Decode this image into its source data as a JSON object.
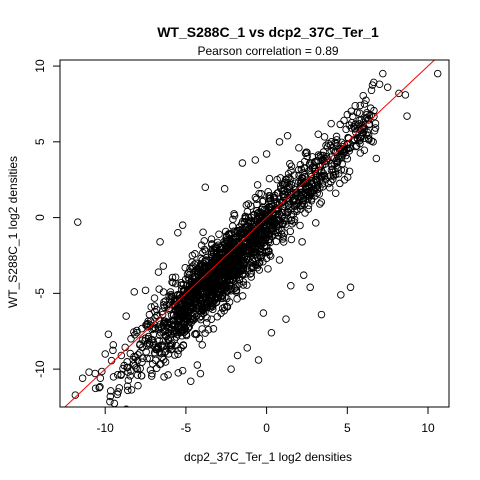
{
  "chart_data": {
    "type": "scatter",
    "title": "WT_S288C_1 vs dcp2_37C_Ter_1",
    "subtitle": "Pearson correlation =  0.89",
    "xlabel": "dcp2_37C_Ter_1 log2 densities",
    "ylabel": "WT_S288C_1 log2 densities",
    "xlim": [
      -12.8,
      11.3
    ],
    "ylim": [
      -12.5,
      10.4
    ],
    "x_ticks": [
      -10,
      -5,
      0,
      5,
      10
    ],
    "y_ticks": [
      -10,
      -5,
      0,
      5,
      10
    ],
    "x_tick_labels": [
      "-10",
      "-5",
      "0",
      "5",
      "10"
    ],
    "y_tick_labels": [
      "-10",
      "-5",
      "0",
      "5",
      "10"
    ],
    "grid": false,
    "legend": "none",
    "point_color": "#000000",
    "marker": "open-circle",
    "reference_line": {
      "type": "y=x",
      "color": "#ff0000"
    },
    "points": [
      [
        -11.7,
        -0.3
      ],
      [
        -11.4,
        -10.6
      ],
      [
        -11.0,
        -10.2
      ],
      [
        -10.3,
        -10.6
      ],
      [
        -9.2,
        -11.5
      ],
      [
        -8.6,
        -11.4
      ],
      [
        -8.7,
        -6.5
      ],
      [
        -9.8,
        -7.7
      ],
      [
        -10.0,
        -9.0
      ],
      [
        -9.5,
        -8.4
      ],
      [
        -8.2,
        -4.9
      ],
      [
        -7.5,
        -4.8
      ],
      [
        -6.7,
        -3.6
      ],
      [
        -6.6,
        -1.6
      ],
      [
        -5.5,
        -1.0
      ],
      [
        -5.2,
        -0.5
      ],
      [
        -3.8,
        2.0
      ],
      [
        -2.6,
        1.9
      ],
      [
        -1.5,
        3.6
      ],
      [
        -0.7,
        3.8
      ],
      [
        0.0,
        4.2
      ],
      [
        0.8,
        5.0
      ],
      [
        1.3,
        5.4
      ],
      [
        2.0,
        4.6
      ],
      [
        2.5,
        4.3
      ],
      [
        3.2,
        5.5
      ],
      [
        4.0,
        6.2
      ],
      [
        5.0,
        6.8
      ],
      [
        5.8,
        7.4
      ],
      [
        6.5,
        8.4
      ],
      [
        7.0,
        8.8
      ],
      [
        7.5,
        8.6
      ],
      [
        8.2,
        8.2
      ],
      [
        8.6,
        8.1
      ],
      [
        10.6,
        9.5
      ],
      [
        7.2,
        9.5
      ],
      [
        8.7,
        6.7
      ],
      [
        6.6,
        5.0
      ],
      [
        6.8,
        3.9
      ],
      [
        4.5,
        3.9
      ],
      [
        5.2,
        4.6
      ],
      [
        6.0,
        5.6
      ],
      [
        4.1,
        3.2
      ],
      [
        3.6,
        2.7
      ],
      [
        3.0,
        2.5
      ],
      [
        1.8,
        1.5
      ],
      [
        2.6,
        0.8
      ],
      [
        2.2,
        -1.6
      ],
      [
        3.3,
        0.9
      ],
      [
        2.3,
        -3.8
      ],
      [
        2.7,
        -4.6
      ],
      [
        3.4,
        -6.4
      ],
      [
        5.2,
        -4.6
      ],
      [
        4.6,
        -5.1
      ],
      [
        1.5,
        -4.5
      ],
      [
        0.8,
        -2.8
      ],
      [
        -0.4,
        -0.6
      ],
      [
        -0.9,
        -2.1
      ],
      [
        -1.6,
        -3.5
      ],
      [
        -2.5,
        -4.6
      ],
      [
        -3.1,
        -5.0
      ],
      [
        -3.8,
        -5.3
      ],
      [
        -4.3,
        -6.0
      ],
      [
        -5.0,
        -6.7
      ],
      [
        -5.5,
        -7.2
      ],
      [
        -6.1,
        -8.0
      ],
      [
        -6.8,
        -8.7
      ],
      [
        -7.4,
        -9.3
      ],
      [
        -8.0,
        -10.0
      ],
      [
        -7.1,
        -10.3
      ],
      [
        -5.2,
        -10.1
      ],
      [
        -4.7,
        -10.8
      ],
      [
        -4.1,
        -10.3
      ],
      [
        -2.2,
        -10.0
      ],
      [
        -1.8,
        -9.1
      ],
      [
        -0.5,
        -9.4
      ],
      [
        -1.2,
        -8.6
      ],
      [
        0.3,
        -7.6
      ],
      [
        1.2,
        -6.7
      ],
      [
        -0.2,
        -6.3
      ],
      [
        -6.4,
        -3.2
      ],
      [
        -7.2,
        -7.1
      ],
      [
        -8.4,
        -8.0
      ],
      [
        -9.0,
        -9.1
      ],
      [
        -6.0,
        -5.4
      ],
      [
        -3.4,
        -1.8
      ],
      [
        -2.2,
        -1.9
      ],
      [
        -1.1,
        -0.2
      ],
      [
        0.5,
        1.2
      ],
      [
        1.7,
        2.8
      ],
      [
        2.8,
        3.6
      ],
      [
        -4.6,
        -2.5
      ],
      [
        -3.9,
        -3.4
      ],
      [
        -2.8,
        -3.1
      ],
      [
        -1.9,
        -2.4
      ],
      [
        -0.7,
        -1.5
      ],
      [
        0.4,
        -0.9
      ],
      [
        1.1,
        -0.2
      ],
      [
        -5.8,
        -4.3
      ],
      [
        -4.8,
        -4.1
      ]
    ]
  }
}
